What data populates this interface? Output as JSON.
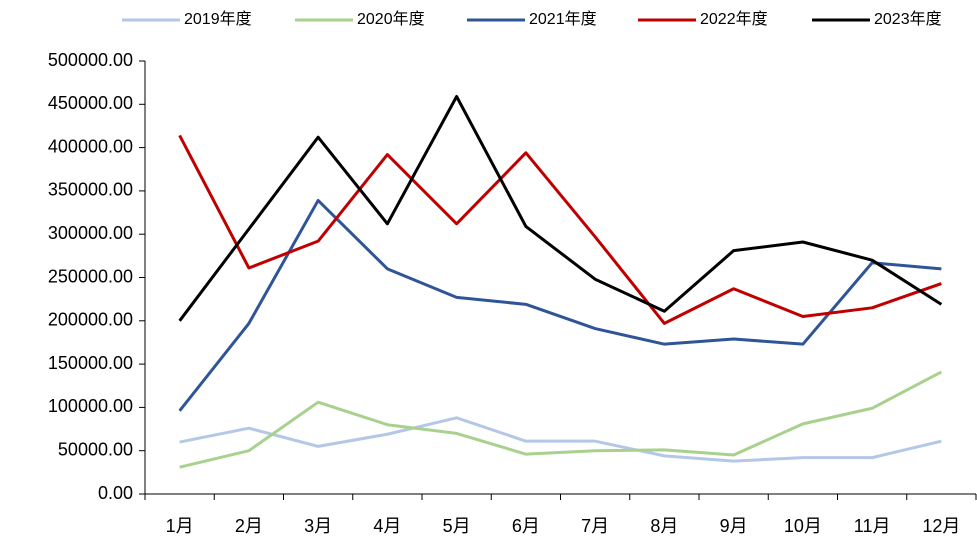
{
  "chart_data": {
    "type": "line",
    "categories": [
      "1月",
      "2月",
      "3月",
      "4月",
      "5月",
      "6月",
      "7月",
      "8月",
      "9月",
      "10月",
      "11月",
      "12月"
    ],
    "series": [
      {
        "name": "2019年度",
        "color": "#b4c7e7",
        "values": [
          60000,
          76000,
          55000,
          69000,
          88000,
          61000,
          61000,
          44000,
          38000,
          42000,
          42000,
          61000
        ]
      },
      {
        "name": "2020年度",
        "color": "#a9d18e",
        "values": [
          31000,
          50000,
          106000,
          80000,
          70000,
          46000,
          50000,
          51000,
          45000,
          81000,
          99000,
          141000
        ]
      },
      {
        "name": "2021年度",
        "color": "#2f5597",
        "values": [
          96000,
          197000,
          339000,
          260000,
          227000,
          219000,
          191000,
          173000,
          179000,
          173000,
          267000,
          260000
        ]
      },
      {
        "name": "2022年度",
        "color": "#c00000",
        "values": [
          414000,
          261000,
          292000,
          392000,
          312000,
          394000,
          297000,
          197000,
          237000,
          205000,
          215000,
          243000
        ]
      },
      {
        "name": "2023年度",
        "color": "#000000",
        "values": [
          200000,
          306000,
          412000,
          312000,
          459000,
          309000,
          248000,
          211000,
          281000,
          291000,
          270000,
          219000
        ]
      }
    ],
    "ylim": [
      0,
      500000
    ],
    "yticks": [
      {
        "value": 0,
        "label": "0.00"
      },
      {
        "value": 50000,
        "label": "50000.00"
      },
      {
        "value": 100000,
        "label": "100000.00"
      },
      {
        "value": 150000,
        "label": "150000.00"
      },
      {
        "value": 200000,
        "label": "200000.00"
      },
      {
        "value": 250000,
        "label": "250000.00"
      },
      {
        "value": 300000,
        "label": "300000.00"
      },
      {
        "value": 350000,
        "label": "350000.00"
      },
      {
        "value": 400000,
        "label": "400000.00"
      },
      {
        "value": 450000,
        "label": "450000.00"
      },
      {
        "value": 500000,
        "label": "500000.00"
      }
    ],
    "grid": false,
    "legend": "top"
  }
}
